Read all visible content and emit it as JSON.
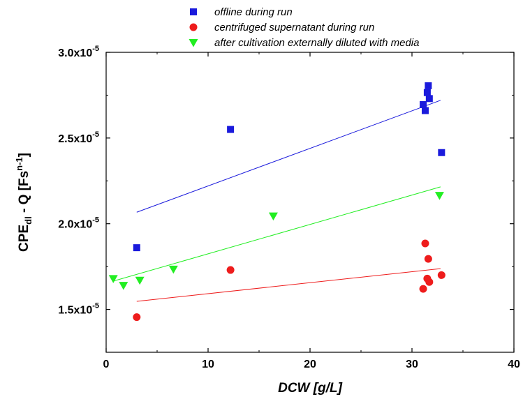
{
  "chart_data": {
    "type": "scatter",
    "xlabel": "DCW [g/L]",
    "ylabel": {
      "main": "CPE",
      "sub": "dl",
      "mid": " - Q [Fs",
      "sup": "n-1",
      "end": "]"
    },
    "xlim": [
      0,
      40
    ],
    "ylim": [
      1.25e-05,
      3e-05
    ],
    "x_ticks": [
      0,
      10,
      20,
      30,
      40
    ],
    "x_tick_labels": [
      "0",
      "10",
      "20",
      "30",
      "40"
    ],
    "y_ticks": [
      1.5e-05,
      2e-05,
      2.5e-05,
      3e-05
    ],
    "y_tick_labels": [
      {
        "mantissa": "1.5x10",
        "exponent": "-5"
      },
      {
        "mantissa": "2.0x10",
        "exponent": "-5"
      },
      {
        "mantissa": "2.5x10",
        "exponent": "-5"
      },
      {
        "mantissa": "3.0x10",
        "exponent": "-5"
      }
    ],
    "legend_position": "top",
    "series": [
      {
        "name": "offline during run",
        "marker": "square",
        "color": "#1a1adc",
        "points": [
          [
            3.0,
            1.86e-05
          ],
          [
            12.2,
            2.55e-05
          ],
          [
            31.1,
            2.695e-05
          ],
          [
            31.3,
            2.66e-05
          ],
          [
            31.5,
            2.765e-05
          ],
          [
            31.6,
            2.805e-05
          ],
          [
            31.7,
            2.73e-05
          ],
          [
            32.9,
            2.415e-05
          ]
        ],
        "fit": {
          "x": [
            3.0,
            32.8
          ],
          "y": [
            2.067e-05,
            2.72e-05
          ]
        }
      },
      {
        "name": "centrifuged supernatant during run",
        "marker": "circle",
        "color": "#ee1c1c",
        "points": [
          [
            3.0,
            1.455e-05
          ],
          [
            12.2,
            1.73e-05
          ],
          [
            31.1,
            1.62e-05
          ],
          [
            31.3,
            1.885e-05
          ],
          [
            31.5,
            1.68e-05
          ],
          [
            31.6,
            1.795e-05
          ],
          [
            31.7,
            1.66e-05
          ],
          [
            32.9,
            1.7e-05
          ]
        ],
        "fit": {
          "x": [
            3.0,
            32.8
          ],
          "y": [
            1.547e-05,
            1.738e-05
          ]
        }
      },
      {
        "name": "after cultivation externally diluted with media",
        "marker": "triangle-down",
        "color": "#22ee22",
        "points": [
          [
            0.7,
            1.68e-05
          ],
          [
            1.7,
            1.64e-05
          ],
          [
            3.3,
            1.67e-05
          ],
          [
            6.6,
            1.735e-05
          ],
          [
            16.4,
            2.045e-05
          ],
          [
            32.7,
            2.165e-05
          ]
        ],
        "fit": {
          "x": [
            0.7,
            32.8
          ],
          "y": [
            1.665e-05,
            2.215e-05
          ]
        }
      }
    ]
  }
}
